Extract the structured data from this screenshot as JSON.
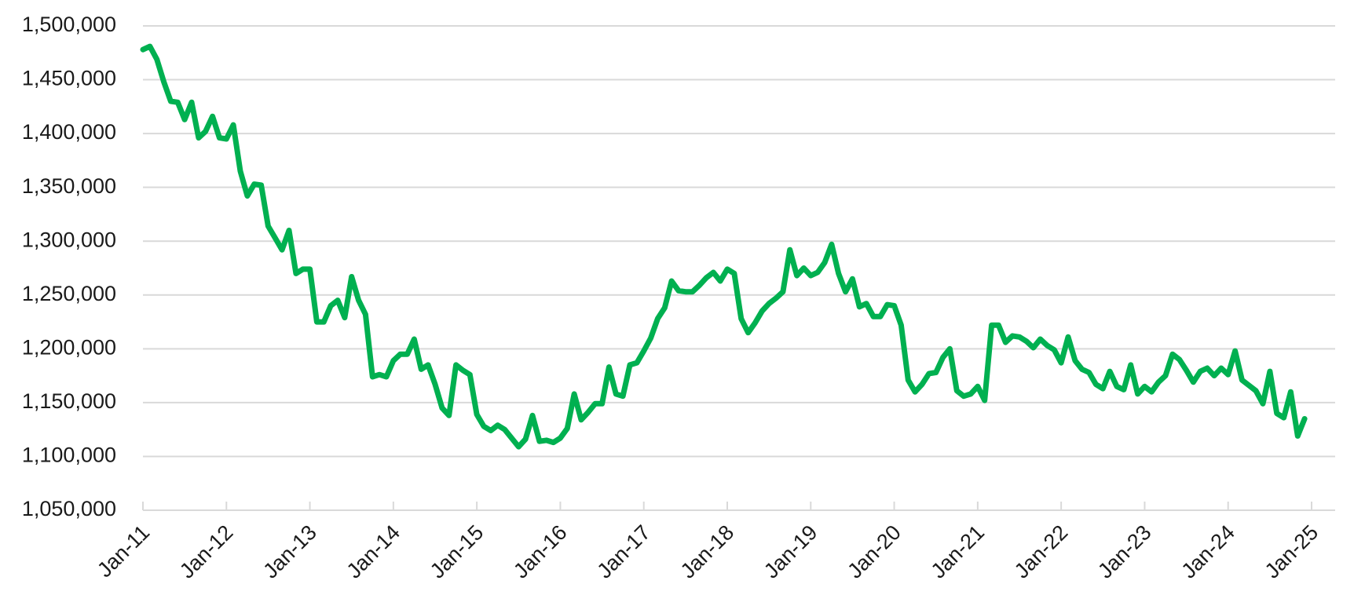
{
  "chart_data": {
    "type": "line",
    "title": "",
    "xlabel": "",
    "ylabel": "",
    "ylim": [
      1050000,
      1500000
    ],
    "yticks": [
      1050000,
      1100000,
      1150000,
      1200000,
      1250000,
      1300000,
      1350000,
      1400000,
      1450000,
      1500000
    ],
    "ytick_labels": [
      "1,050,000",
      "1,100,000",
      "1,150,000",
      "1,200,000",
      "1,250,000",
      "1,300,000",
      "1,350,000",
      "1,400,000",
      "1,450,000",
      "1,500,000"
    ],
    "xtick_labels": [
      "Jan-11",
      "Jan-12",
      "Jan-13",
      "Jan-14",
      "Jan-15",
      "Jan-16",
      "Jan-17",
      "Jan-18",
      "Jan-19",
      "Jan-20",
      "Jan-21",
      "Jan-22",
      "Jan-23",
      "Jan-24",
      "Jan-25"
    ],
    "x_start": "Jan-11",
    "x_frequency": "monthly",
    "grid": true,
    "legend": "none",
    "series": [
      {
        "name": "Series 1",
        "color": "#00B050",
        "values": [
          1478000,
          1481000,
          1469000,
          1448000,
          1430000,
          1429000,
          1413000,
          1429000,
          1396000,
          1402000,
          1416000,
          1396000,
          1395000,
          1408000,
          1365000,
          1342000,
          1353000,
          1352000,
          1314000,
          1303000,
          1292000,
          1310000,
          1270000,
          1274000,
          1274000,
          1225000,
          1225000,
          1240000,
          1245000,
          1229000,
          1267000,
          1245000,
          1232000,
          1174000,
          1176000,
          1174000,
          1189000,
          1195000,
          1195000,
          1209000,
          1181000,
          1185000,
          1167000,
          1145000,
          1138000,
          1185000,
          1180000,
          1176000,
          1139000,
          1128000,
          1124000,
          1129000,
          1125000,
          1117000,
          1109000,
          1116000,
          1138000,
          1114000,
          1115000,
          1113000,
          1117000,
          1126000,
          1158000,
          1134000,
          1141000,
          1149000,
          1149000,
          1183000,
          1158000,
          1156000,
          1185000,
          1187000,
          1198000,
          1210000,
          1228000,
          1238000,
          1263000,
          1254000,
          1253000,
          1253000,
          1259000,
          1266000,
          1271000,
          1263000,
          1274000,
          1270000,
          1228000,
          1215000,
          1224000,
          1235000,
          1242000,
          1247000,
          1253000,
          1292000,
          1268000,
          1275000,
          1268000,
          1271000,
          1280000,
          1297000,
          1270000,
          1253000,
          1265000,
          1239000,
          1242000,
          1230000,
          1230000,
          1241000,
          1240000,
          1222000,
          1171000,
          1160000,
          1167000,
          1177000,
          1178000,
          1192000,
          1200000,
          1161000,
          1156000,
          1158000,
          1165000,
          1152000,
          1222000,
          1222000,
          1206000,
          1212000,
          1211000,
          1207000,
          1201000,
          1209000,
          1203000,
          1199000,
          1187000,
          1211000,
          1189000,
          1181000,
          1178000,
          1167000,
          1163000,
          1179000,
          1165000,
          1162000,
          1185000,
          1158000,
          1165000,
          1160000,
          1169000,
          1175000,
          1195000,
          1190000,
          1180000,
          1169000,
          1179000,
          1182000,
          1175000,
          1182000,
          1176000,
          1198000,
          1171000,
          1166000,
          1161000,
          1149000,
          1179000,
          1140000,
          1136000,
          1160000,
          1119000,
          1135000
        ]
      }
    ]
  }
}
